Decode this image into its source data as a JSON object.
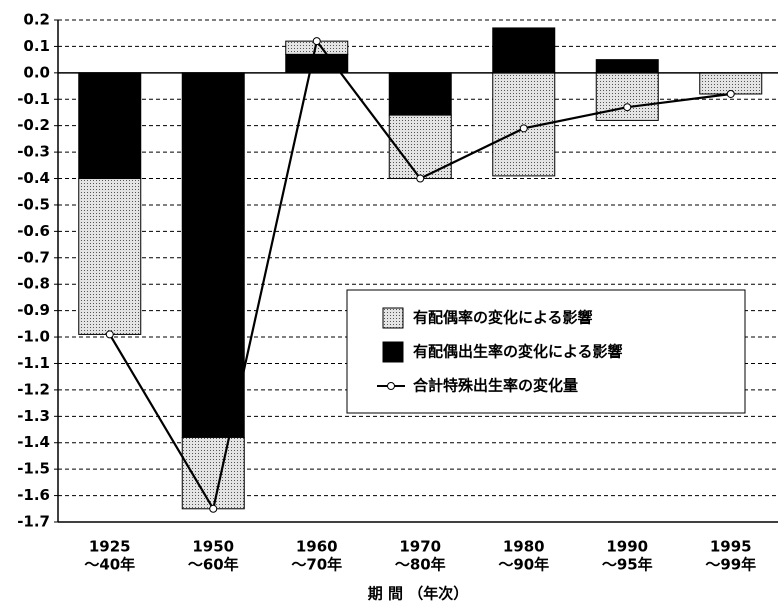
{
  "chart_data": {
    "type": "bar",
    "xlabel": "期 間 （年次）",
    "categories": [
      [
        "1925",
        "～40年"
      ],
      [
        "1950",
        "～60年"
      ],
      [
        "1960",
        "～70年"
      ],
      [
        "1970",
        "～80年"
      ],
      [
        "1980",
        "～90年"
      ],
      [
        "1990",
        "～95年"
      ],
      [
        "1995",
        "～99年"
      ]
    ],
    "series": [
      {
        "name": "有配偶出生率の変化による影響",
        "color": "#000000",
        "pattern": false,
        "values": [
          -0.4,
          -1.38,
          0.07,
          -0.16,
          0.17,
          0.05,
          0
        ]
      },
      {
        "name": "有配偶率の変化による影響",
        "color": "#e4e4e4",
        "pattern": true,
        "values": [
          -0.59,
          -0.27,
          0.05,
          -0.24,
          -0.39,
          -0.18,
          -0.08
        ]
      },
      {
        "name": "合計特殊出生率の変化量",
        "type": "line",
        "color": "#000000",
        "values": [
          -0.99,
          -1.65,
          0.12,
          -0.4,
          -0.21,
          -0.13,
          -0.08
        ]
      }
    ],
    "legend_order": [
      1,
      0,
      2
    ],
    "ylim": [
      -1.7,
      0.2
    ],
    "yticks": [
      0.2,
      0.1,
      {
        "value": 0,
        "label": "0.0"
      },
      -0.1,
      -0.2,
      -0.3,
      -0.4,
      -0.5,
      -0.6,
      -0.7,
      -0.8,
      -0.9,
      {
        "value": -1,
        "label": "-1.0"
      },
      -1.1,
      -1.2,
      -1.3,
      -1.4,
      -1.5,
      -1.6,
      -1.7
    ],
    "grid": true
  }
}
